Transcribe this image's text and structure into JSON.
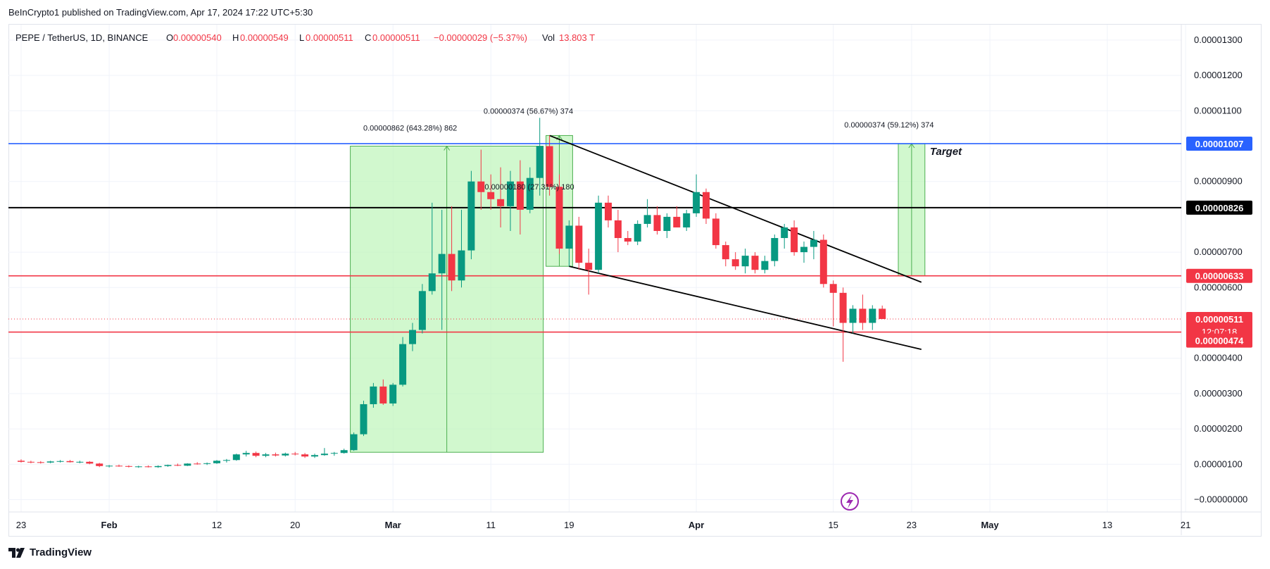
{
  "publisher": {
    "text": "BeInCrypto1 published on TradingView.com, Apr 17, 2024 17:22 UTC+5:30"
  },
  "header": {
    "symbol": "PEPE / TetherUS, 1D, BINANCE",
    "o_label": "O",
    "o_value": "0.00000540",
    "h_label": "H",
    "h_value": "0.00000549",
    "l_label": "L",
    "l_value": "0.00000511",
    "c_label": "C",
    "c_value": "0.00000511",
    "change": "−0.00000029 (−5.37%)",
    "vol_label": "Vol",
    "vol_value": "13.803 T"
  },
  "footer": {
    "brand": "TradingView"
  },
  "colors": {
    "up": "#089981",
    "down": "#f23645",
    "blue_line": "#2962ff",
    "red_line": "#f23645",
    "black_line": "#000000",
    "green_fill": "#b9f4b4",
    "measure": "#4caf50"
  },
  "chart_data": {
    "type": "candlestick",
    "ylim": [
      0,
      1.3e-05
    ],
    "y_ticks": [
      "0.00001300",
      "0.00001200",
      "0.00001100",
      "0.00000900",
      "0.00000700",
      "0.00000600",
      "0.00000400",
      "0.00000300",
      "0.00000200",
      "0.00000100",
      "−0.00000000"
    ],
    "x_ticks": [
      {
        "label": "23",
        "date": "2024-01-23"
      },
      {
        "label": "Feb",
        "date": "2024-02-01"
      },
      {
        "label": "12",
        "date": "2024-02-12"
      },
      {
        "label": "20",
        "date": "2024-02-20"
      },
      {
        "label": "Mar",
        "date": "2024-03-01"
      },
      {
        "label": "11",
        "date": "2024-03-11"
      },
      {
        "label": "19",
        "date": "2024-03-19"
      },
      {
        "label": "Apr",
        "date": "2024-04-01"
      },
      {
        "label": "15",
        "date": "2024-04-15"
      },
      {
        "label": "23",
        "date": "2024-04-23"
      },
      {
        "label": "May",
        "date": "2024-05-01"
      },
      {
        "label": "13",
        "date": "2024-05-13"
      },
      {
        "label": "21",
        "date": "2024-05-21"
      }
    ],
    "candles": [
      {
        "date": "2024-01-23",
        "o": 1.1,
        "h": 1.14,
        "l": 1.05,
        "c": 1.07
      },
      {
        "date": "2024-01-24",
        "o": 1.07,
        "h": 1.1,
        "l": 1.03,
        "c": 1.06
      },
      {
        "date": "2024-01-25",
        "o": 1.06,
        "h": 1.09,
        "l": 1.02,
        "c": 1.05
      },
      {
        "date": "2024-01-26",
        "o": 1.05,
        "h": 1.1,
        "l": 1.03,
        "c": 1.08
      },
      {
        "date": "2024-01-27",
        "o": 1.08,
        "h": 1.12,
        "l": 1.05,
        "c": 1.09
      },
      {
        "date": "2024-01-28",
        "o": 1.09,
        "h": 1.12,
        "l": 1.05,
        "c": 1.06
      },
      {
        "date": "2024-01-29",
        "o": 1.06,
        "h": 1.1,
        "l": 1.03,
        "c": 1.07
      },
      {
        "date": "2024-01-30",
        "o": 1.07,
        "h": 1.09,
        "l": 1.0,
        "c": 1.02
      },
      {
        "date": "2024-01-31",
        "o": 1.02,
        "h": 1.04,
        "l": 0.92,
        "c": 0.95
      },
      {
        "date": "2024-02-01",
        "o": 0.95,
        "h": 0.98,
        "l": 0.91,
        "c": 0.96
      },
      {
        "date": "2024-02-02",
        "o": 0.96,
        "h": 0.99,
        "l": 0.93,
        "c": 0.95
      },
      {
        "date": "2024-02-03",
        "o": 0.95,
        "h": 0.97,
        "l": 0.91,
        "c": 0.93
      },
      {
        "date": "2024-02-04",
        "o": 0.93,
        "h": 0.96,
        "l": 0.9,
        "c": 0.94
      },
      {
        "date": "2024-02-05",
        "o": 0.94,
        "h": 0.97,
        "l": 0.91,
        "c": 0.92
      },
      {
        "date": "2024-02-06",
        "o": 0.92,
        "h": 0.97,
        "l": 0.9,
        "c": 0.95
      },
      {
        "date": "2024-02-07",
        "o": 0.95,
        "h": 0.99,
        "l": 0.93,
        "c": 0.98
      },
      {
        "date": "2024-02-08",
        "o": 0.98,
        "h": 1.02,
        "l": 0.95,
        "c": 0.96
      },
      {
        "date": "2024-02-09",
        "o": 0.96,
        "h": 1.03,
        "l": 0.95,
        "c": 1.02
      },
      {
        "date": "2024-02-10",
        "o": 1.02,
        "h": 1.06,
        "l": 0.99,
        "c": 1.01
      },
      {
        "date": "2024-02-11",
        "o": 1.01,
        "h": 1.05,
        "l": 0.98,
        "c": 1.03
      },
      {
        "date": "2024-02-12",
        "o": 1.03,
        "h": 1.12,
        "l": 1.01,
        "c": 1.1
      },
      {
        "date": "2024-02-13",
        "o": 1.1,
        "h": 1.15,
        "l": 1.05,
        "c": 1.12
      },
      {
        "date": "2024-02-14",
        "o": 1.12,
        "h": 1.3,
        "l": 1.1,
        "c": 1.28
      },
      {
        "date": "2024-02-15",
        "o": 1.28,
        "h": 1.38,
        "l": 1.22,
        "c": 1.32
      },
      {
        "date": "2024-02-16",
        "o": 1.32,
        "h": 1.36,
        "l": 1.2,
        "c": 1.24
      },
      {
        "date": "2024-02-17",
        "o": 1.24,
        "h": 1.32,
        "l": 1.2,
        "c": 1.28
      },
      {
        "date": "2024-02-18",
        "o": 1.28,
        "h": 1.33,
        "l": 1.22,
        "c": 1.25
      },
      {
        "date": "2024-02-19",
        "o": 1.25,
        "h": 1.33,
        "l": 1.22,
        "c": 1.3
      },
      {
        "date": "2024-02-20",
        "o": 1.3,
        "h": 1.35,
        "l": 1.25,
        "c": 1.28
      },
      {
        "date": "2024-02-21",
        "o": 1.28,
        "h": 1.32,
        "l": 1.18,
        "c": 1.22
      },
      {
        "date": "2024-02-22",
        "o": 1.22,
        "h": 1.3,
        "l": 1.18,
        "c": 1.26
      },
      {
        "date": "2024-02-23",
        "o": 1.26,
        "h": 1.46,
        "l": 1.24,
        "c": 1.3
      },
      {
        "date": "2024-02-24",
        "o": 1.3,
        "h": 1.35,
        "l": 1.24,
        "c": 1.32
      },
      {
        "date": "2024-02-25",
        "o": 1.32,
        "h": 1.44,
        "l": 1.3,
        "c": 1.4
      },
      {
        "date": "2024-02-26",
        "o": 1.4,
        "h": 1.9,
        "l": 1.38,
        "c": 1.85
      },
      {
        "date": "2024-02-27",
        "o": 1.85,
        "h": 2.8,
        "l": 1.8,
        "c": 2.7
      },
      {
        "date": "2024-02-28",
        "o": 2.7,
        "h": 3.3,
        "l": 2.6,
        "c": 3.2
      },
      {
        "date": "2024-02-29",
        "o": 3.2,
        "h": 3.4,
        "l": 2.68,
        "c": 2.72
      },
      {
        "date": "2024-03-01",
        "o": 2.72,
        "h": 3.3,
        "l": 2.65,
        "c": 3.25
      },
      {
        "date": "2024-03-02",
        "o": 3.25,
        "h": 4.6,
        "l": 3.2,
        "c": 4.4
      },
      {
        "date": "2024-03-03",
        "o": 4.4,
        "h": 5.0,
        "l": 4.2,
        "c": 4.8
      },
      {
        "date": "2024-03-04",
        "o": 4.8,
        "h": 6.1,
        "l": 4.7,
        "c": 5.9
      },
      {
        "date": "2024-03-05",
        "o": 5.9,
        "h": 8.4,
        "l": 5.8,
        "c": 6.4
      },
      {
        "date": "2024-03-06",
        "o": 6.4,
        "h": 8.2,
        "l": 4.8,
        "c": 6.95
      },
      {
        "date": "2024-03-07",
        "o": 6.95,
        "h": 8.3,
        "l": 5.9,
        "c": 6.2
      },
      {
        "date": "2024-03-08",
        "o": 6.2,
        "h": 8.2,
        "l": 6.0,
        "c": 7.05
      },
      {
        "date": "2024-03-09",
        "o": 7.05,
        "h": 9.3,
        "l": 6.8,
        "c": 9.0
      },
      {
        "date": "2024-03-10",
        "o": 9.0,
        "h": 9.9,
        "l": 8.2,
        "c": 8.7
      },
      {
        "date": "2024-03-11",
        "o": 8.7,
        "h": 9.2,
        "l": 8.2,
        "c": 8.5
      },
      {
        "date": "2024-03-12",
        "o": 8.5,
        "h": 9.4,
        "l": 7.7,
        "c": 8.3
      },
      {
        "date": "2024-03-13",
        "o": 8.3,
        "h": 9.3,
        "l": 7.6,
        "c": 9.0
      },
      {
        "date": "2024-03-14",
        "o": 9.0,
        "h": 9.6,
        "l": 7.5,
        "c": 8.2
      },
      {
        "date": "2024-03-15",
        "o": 8.2,
        "h": 9.4,
        "l": 8.1,
        "c": 9.1
      },
      {
        "date": "2024-03-16",
        "o": 9.1,
        "h": 10.8,
        "l": 8.6,
        "c": 10.0
      },
      {
        "date": "2024-03-17",
        "o": 10.0,
        "h": 10.3,
        "l": 8.6,
        "c": 8.85
      },
      {
        "date": "2024-03-18",
        "o": 8.85,
        "h": 9.2,
        "l": 6.95,
        "c": 7.1
      },
      {
        "date": "2024-03-19",
        "o": 7.1,
        "h": 7.9,
        "l": 6.6,
        "c": 7.75
      },
      {
        "date": "2024-03-20",
        "o": 7.75,
        "h": 8.0,
        "l": 6.5,
        "c": 6.7
      },
      {
        "date": "2024-03-21",
        "o": 6.7,
        "h": 7.1,
        "l": 5.8,
        "c": 6.5
      },
      {
        "date": "2024-03-22",
        "o": 6.5,
        "h": 8.6,
        "l": 6.4,
        "c": 8.4
      },
      {
        "date": "2024-03-23",
        "o": 8.4,
        "h": 8.6,
        "l": 7.7,
        "c": 7.9
      },
      {
        "date": "2024-03-24",
        "o": 7.9,
        "h": 8.2,
        "l": 7.0,
        "c": 7.4
      },
      {
        "date": "2024-03-25",
        "o": 7.4,
        "h": 7.6,
        "l": 7.2,
        "c": 7.3
      },
      {
        "date": "2024-03-26",
        "o": 7.3,
        "h": 7.9,
        "l": 7.2,
        "c": 7.8
      },
      {
        "date": "2024-03-27",
        "o": 7.8,
        "h": 8.5,
        "l": 7.7,
        "c": 8.05
      },
      {
        "date": "2024-03-28",
        "o": 8.05,
        "h": 8.3,
        "l": 7.5,
        "c": 7.6
      },
      {
        "date": "2024-03-29",
        "o": 7.6,
        "h": 8.1,
        "l": 7.4,
        "c": 8.0
      },
      {
        "date": "2024-03-30",
        "o": 8.0,
        "h": 8.3,
        "l": 7.7,
        "c": 7.7
      },
      {
        "date": "2024-03-31",
        "o": 7.7,
        "h": 8.2,
        "l": 7.6,
        "c": 8.1
      },
      {
        "date": "2024-04-01",
        "o": 8.1,
        "h": 9.2,
        "l": 8.0,
        "c": 8.7
      },
      {
        "date": "2024-04-02",
        "o": 8.7,
        "h": 8.8,
        "l": 7.8,
        "c": 7.95
      },
      {
        "date": "2024-04-03",
        "o": 7.95,
        "h": 8.1,
        "l": 7.1,
        "c": 7.2
      },
      {
        "date": "2024-04-04",
        "o": 7.2,
        "h": 7.3,
        "l": 6.6,
        "c": 6.8
      },
      {
        "date": "2024-04-05",
        "o": 6.8,
        "h": 7.0,
        "l": 6.5,
        "c": 6.6
      },
      {
        "date": "2024-04-06",
        "o": 6.6,
        "h": 7.1,
        "l": 6.4,
        "c": 6.9
      },
      {
        "date": "2024-04-07",
        "o": 6.9,
        "h": 7.0,
        "l": 6.4,
        "c": 6.5
      },
      {
        "date": "2024-04-08",
        "o": 6.5,
        "h": 6.9,
        "l": 6.4,
        "c": 6.75
      },
      {
        "date": "2024-04-09",
        "o": 6.75,
        "h": 7.5,
        "l": 6.6,
        "c": 7.4
      },
      {
        "date": "2024-04-10",
        "o": 7.4,
        "h": 7.8,
        "l": 7.1,
        "c": 7.7
      },
      {
        "date": "2024-04-11",
        "o": 7.7,
        "h": 7.9,
        "l": 6.9,
        "c": 7.0
      },
      {
        "date": "2024-04-12",
        "o": 7.0,
        "h": 7.3,
        "l": 6.7,
        "c": 7.15
      },
      {
        "date": "2024-04-13",
        "o": 7.15,
        "h": 7.6,
        "l": 6.8,
        "c": 7.35
      },
      {
        "date": "2024-04-14",
        "o": 7.35,
        "h": 7.5,
        "l": 6.0,
        "c": 6.1
      },
      {
        "date": "2024-04-15",
        "o": 6.1,
        "h": 6.2,
        "l": 4.9,
        "c": 5.85
      },
      {
        "date": "2024-04-16",
        "o": 5.85,
        "h": 6.0,
        "l": 3.9,
        "c": 5.0
      },
      {
        "date": "2024-04-17",
        "o": 5.0,
        "h": 5.5,
        "l": 4.7,
        "c": 5.4
      },
      {
        "date": "2024-04-18",
        "o": 5.4,
        "h": 5.8,
        "l": 4.8,
        "c": 5.0
      },
      {
        "date": "2024-04-19",
        "o": 5.0,
        "h": 5.5,
        "l": 4.8,
        "c": 5.4
      },
      {
        "date": "2024-04-20",
        "o": 5.4,
        "h": 5.49,
        "l": 5.11,
        "c": 5.11
      }
    ],
    "horizontal_lines": [
      {
        "name": "blue",
        "value": 10.07,
        "label": "0.00001007",
        "color": "#2962ff"
      },
      {
        "name": "black",
        "value": 8.26,
        "label": "0.00000826",
        "color": "#000000"
      },
      {
        "name": "red-upper",
        "value": 6.33,
        "label": "0.00000633",
        "color": "#f23645"
      },
      {
        "name": "red-lower",
        "value": 4.74,
        "label": "0.00000474",
        "color": "#f23645"
      }
    ],
    "current_price": {
      "label": "0.00000511",
      "countdown": "12:07:18",
      "value": 5.11
    },
    "measure_labels": [
      "0.00000862 (643.28%) 862",
      "0.00000374 (56.67%) 374",
      "0.00000180 (27.31%) 180",
      "0.00000374 (59.12%) 374"
    ],
    "annotation": "Target"
  }
}
